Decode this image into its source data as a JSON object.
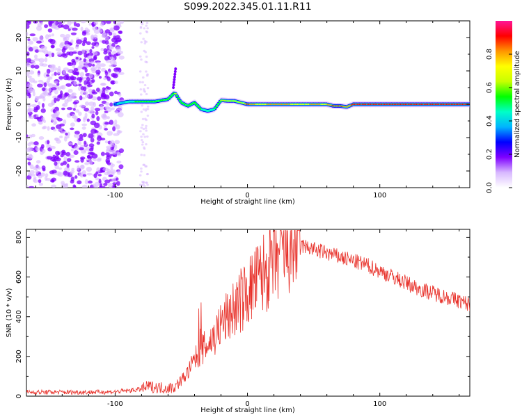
{
  "figure_title": "S099.2022.345.01.11.R11",
  "chart_data": [
    {
      "type": "heatmap",
      "xlabel": "Height of straight line (km)",
      "ylabel": "Frequency (Hz)",
      "xlim": [
        -167,
        168
      ],
      "ylim": [
        -25,
        25
      ],
      "xticks": [
        -100,
        0,
        100
      ],
      "yticks": [
        -20,
        -10,
        0,
        10,
        20
      ],
      "colorbar": {
        "label": "Normalized spectral amplitude",
        "range": [
          0,
          1
        ],
        "ticks": [
          "0.0",
          "0.2",
          "0.4",
          "0.6",
          "0.8"
        ],
        "colors": [
          "#ffffff",
          "#d8b8ff",
          "#7f00ff",
          "#0000ff",
          "#00b4ff",
          "#00ffc8",
          "#00ff00",
          "#c8ff00",
          "#ffff00",
          "#ff9600",
          "#ff0000",
          "#ff1496"
        ]
      },
      "ridge": {
        "x": [
          -100,
          -90,
          -80,
          -70,
          -60,
          -55,
          -50,
          -45,
          -40,
          -35,
          -30,
          -25,
          -20,
          -15,
          -10,
          -5,
          0,
          10,
          20,
          30,
          40,
          50,
          60,
          65,
          70,
          75,
          80,
          90,
          100,
          110,
          120,
          130,
          140,
          150,
          160,
          168
        ],
        "y": [
          0,
          0.8,
          0.8,
          0.8,
          1.5,
          3.5,
          0.5,
          -0.5,
          0.5,
          -1.5,
          -2.0,
          -1.5,
          1.2,
          1.0,
          1.0,
          0.5,
          0,
          0,
          0,
          0,
          0,
          0,
          0,
          -0.5,
          -0.5,
          -0.8,
          0,
          0,
          0,
          0,
          0,
          0,
          0,
          0,
          0,
          0
        ],
        "amplitude": [
          0.3,
          0.45,
          0.55,
          0.5,
          0.5,
          0.6,
          0.55,
          0.5,
          0.5,
          0.5,
          0.45,
          0.5,
          0.6,
          0.65,
          0.6,
          0.6,
          0.9,
          0.7,
          0.85,
          0.8,
          0.7,
          0.8,
          0.75,
          0.9,
          0.9,
          0.8,
          0.9,
          0.95,
          0.95,
          0.95,
          0.95,
          0.95,
          0.95,
          0.95,
          0.95,
          0.95
        ]
      },
      "noise_region_x": [
        -167,
        -95
      ],
      "spike": {
        "x": -56,
        "y_range": [
          5,
          11
        ]
      }
    },
    {
      "type": "line",
      "xlabel": "Height of straight line (km)",
      "ylabel": "SNR (10 * v/v)",
      "xlim": [
        -167,
        168
      ],
      "ylim": [
        0,
        840
      ],
      "xticks": [
        -100,
        0,
        100
      ],
      "yticks": [
        0,
        200,
        400,
        600,
        800
      ],
      "color": "#e8312a",
      "envelope": {
        "x": [
          -167,
          -120,
          -100,
          -90,
          -80,
          -75,
          -70,
          -60,
          -55,
          -50,
          -45,
          -40,
          -35,
          -30,
          -25,
          -20,
          -10,
          0,
          10,
          20,
          30,
          35,
          40,
          50,
          60,
          70,
          80,
          90,
          100,
          110,
          120,
          130,
          140,
          150,
          160,
          168
        ],
        "y": [
          20,
          20,
          22,
          28,
          35,
          50,
          45,
          40,
          45,
          80,
          120,
          180,
          230,
          260,
          300,
          360,
          440,
          520,
          600,
          680,
          740,
          770,
          760,
          740,
          720,
          700,
          680,
          660,
          630,
          600,
          570,
          540,
          520,
          500,
          480,
          460
        ]
      }
    }
  ]
}
